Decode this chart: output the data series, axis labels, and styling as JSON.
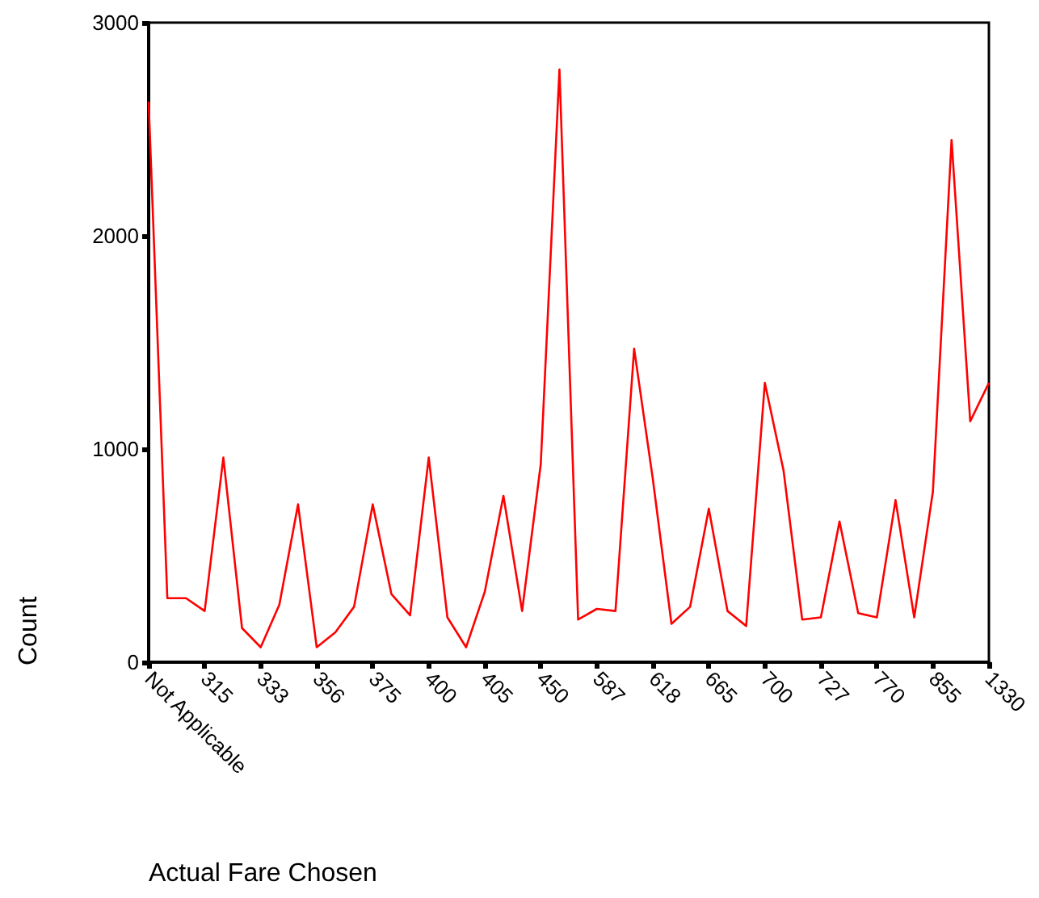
{
  "chart_data": {
    "type": "line",
    "xlabel": "Actual Fare Chosen",
    "ylabel": "Count",
    "categories": [
      "Not Applicable",
      null,
      null,
      "315",
      null,
      null,
      "333",
      null,
      null,
      "356",
      null,
      null,
      "375",
      null,
      null,
      "400",
      null,
      null,
      "405",
      null,
      null,
      "450",
      null,
      null,
      "587",
      null,
      null,
      "618",
      null,
      null,
      "665",
      null,
      null,
      "700",
      null,
      null,
      "727",
      null,
      null,
      "770",
      null,
      null,
      "855",
      null,
      null,
      "1330"
    ],
    "series": [
      {
        "color": "#ff0000",
        "values": [
          2630,
          300,
          300,
          240,
          960,
          160,
          70,
          270,
          740,
          70,
          140,
          260,
          740,
          320,
          220,
          960,
          210,
          70,
          330,
          780,
          240,
          930,
          2780,
          200,
          250,
          240,
          1470,
          860,
          180,
          260,
          720,
          240,
          170,
          1310,
          900,
          200,
          210,
          660,
          230,
          210,
          760,
          210,
          800,
          2450,
          1130,
          1310
        ]
      }
    ],
    "ylim": [
      0,
      3000
    ],
    "yticks": [
      0,
      1000,
      2000,
      3000
    ],
    "marker": "none",
    "line_style": "solid"
  }
}
